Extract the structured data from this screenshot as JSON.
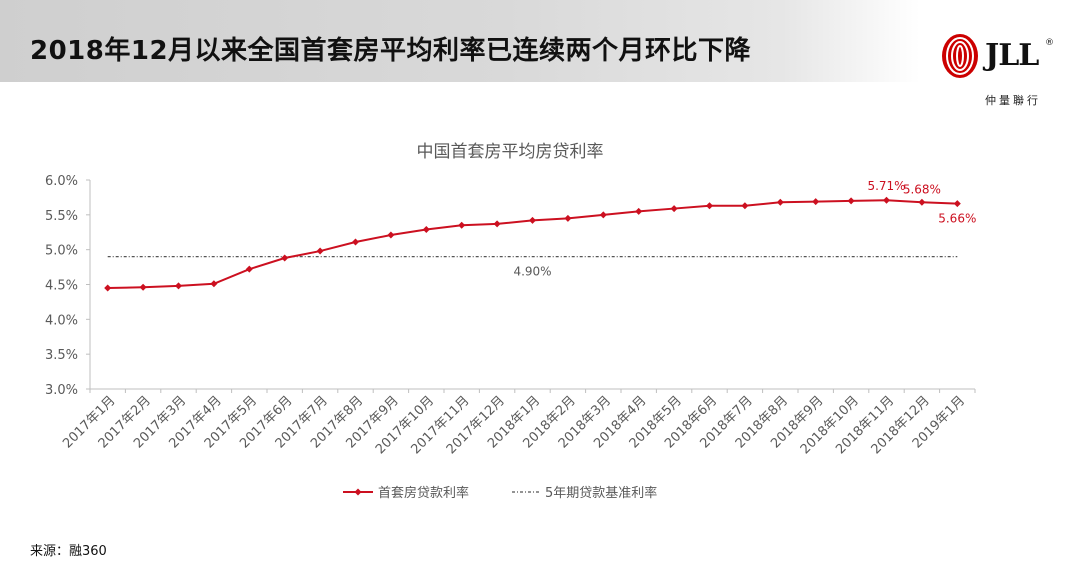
{
  "slide": {
    "title": "2018年12月以来全国首套房平均利率已连续两个月环比下降",
    "source": "来源：融360"
  },
  "logo": {
    "brand": "JLL",
    "mark": "®",
    "subtitle": "仲量聯行",
    "color": "#cc0000"
  },
  "colors": {
    "series": "#cc1020",
    "reference": "#555555",
    "axis": "#bfbfbf",
    "text": "#595959"
  },
  "chart_data": {
    "type": "line",
    "title": "中国首套房平均房贷利率",
    "categories": [
      "2017年1月",
      "2017年2月",
      "2017年3月",
      "2017年4月",
      "2017年5月",
      "2017年6月",
      "2017年7月",
      "2017年8月",
      "2017年9月",
      "2017年10月",
      "2017年11月",
      "2017年12月",
      "2018年1月",
      "2018年2月",
      "2018年3月",
      "2018年4月",
      "2018年5月",
      "2018年6月",
      "2018年7月",
      "2018年8月",
      "2018年9月",
      "2018年10月",
      "2018年11月",
      "2018年12月",
      "2019年1月"
    ],
    "series": [
      {
        "name": "首套房贷款利率",
        "values": [
          4.45,
          4.46,
          4.48,
          4.51,
          4.72,
          4.88,
          4.98,
          5.11,
          5.21,
          5.29,
          5.35,
          5.37,
          5.42,
          5.45,
          5.5,
          5.55,
          5.59,
          5.63,
          5.63,
          5.68,
          5.69,
          5.7,
          5.71,
          5.68,
          5.66
        ]
      },
      {
        "name": "5年期贷款基准利率",
        "values": [
          4.9,
          4.9,
          4.9,
          4.9,
          4.9,
          4.9,
          4.9,
          4.9,
          4.9,
          4.9,
          4.9,
          4.9,
          4.9,
          4.9,
          4.9,
          4.9,
          4.9,
          4.9,
          4.9,
          4.9,
          4.9,
          4.9,
          4.9,
          4.9,
          4.9
        ]
      }
    ],
    "y_ticks": [
      "3.0%",
      "3.5%",
      "4.0%",
      "4.5%",
      "5.0%",
      "5.5%",
      "6.0%"
    ],
    "ylim": [
      3.0,
      6.0
    ],
    "annotations": [
      {
        "index": 22,
        "label": "5.71%"
      },
      {
        "index": 23,
        "label": "5.68%"
      },
      {
        "index": 24,
        "label": "5.66%"
      }
    ],
    "reference_label": "4.90%",
    "legend_position": "bottom",
    "grid": false
  }
}
